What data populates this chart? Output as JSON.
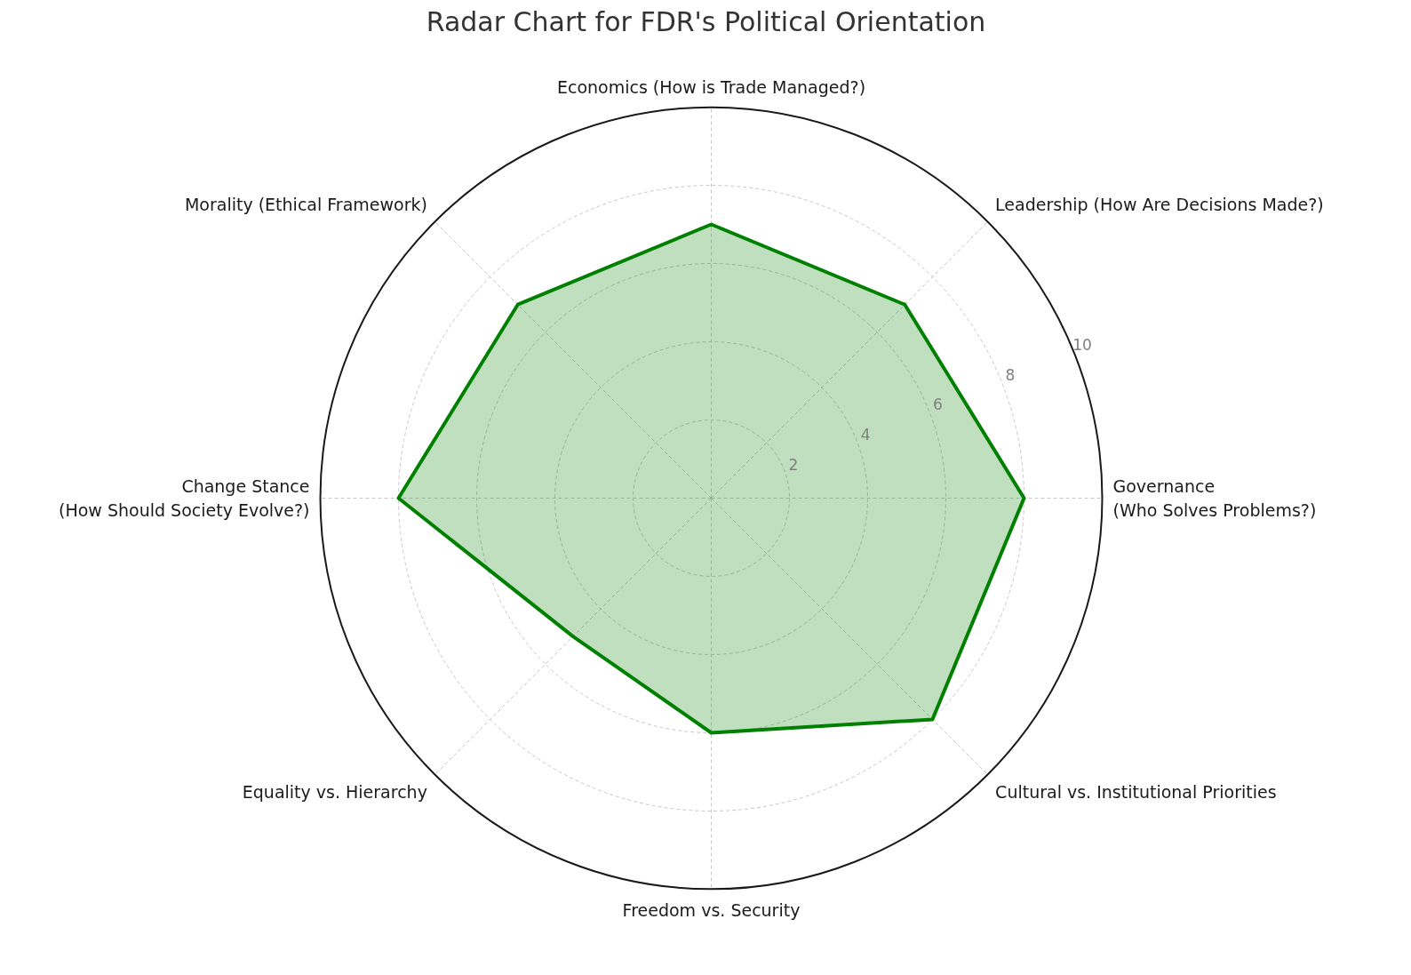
{
  "chart_data": {
    "type": "radar",
    "title": "Radar Chart for FDR's Political Orientation",
    "categories": [
      "Economics (How is Trade Managed?)",
      "Leadership (How Are Decisions Made?)",
      "Governance (Who Solves Problems?)",
      "Cultural vs. Institutional Priorities",
      "Freedom vs. Security",
      "Equality vs. Hierarchy",
      "Change Stance (How Should Society Evolve?)",
      "Morality (Ethical Framework)"
    ],
    "series": [
      {
        "color": "#008000",
        "values": [
          7,
          7,
          8,
          8,
          6,
          5,
          8,
          7
        ]
      }
    ],
    "ylim": [
      0,
      10
    ],
    "yticks": [
      2,
      4,
      6,
      8,
      10
    ],
    "grid": true
  }
}
